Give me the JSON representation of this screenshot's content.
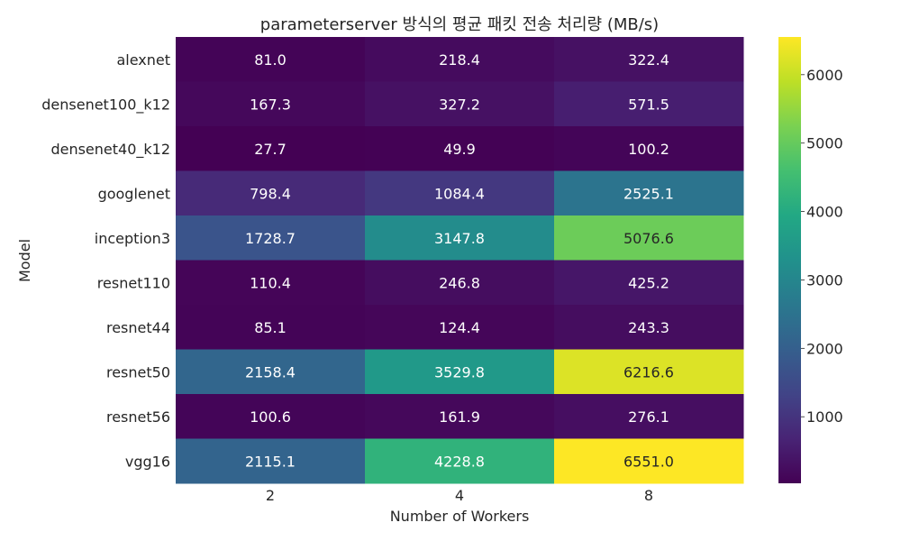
{
  "chart_data": {
    "type": "heatmap",
    "title": "parameterserver 방식의 평균 패킷 전송 처리량 (MB/s)",
    "xlabel": "Number of Workers",
    "ylabel": "Model",
    "x_categories": [
      "2",
      "4",
      "8"
    ],
    "y_categories": [
      "alexnet",
      "densenet100_k12",
      "densenet40_k12",
      "googlenet",
      "inception3",
      "resnet110",
      "resnet44",
      "resnet50",
      "resnet56",
      "vgg16"
    ],
    "values": [
      [
        81.0,
        218.4,
        322.4
      ],
      [
        167.3,
        327.2,
        571.5
      ],
      [
        27.7,
        49.9,
        100.2
      ],
      [
        798.4,
        1084.4,
        2525.1
      ],
      [
        1728.7,
        3147.8,
        5076.6
      ],
      [
        110.4,
        246.8,
        425.2
      ],
      [
        85.1,
        124.4,
        243.3
      ],
      [
        2158.4,
        3529.8,
        6216.6
      ],
      [
        100.6,
        161.9,
        276.1
      ],
      [
        2115.1,
        4228.8,
        6551.0
      ]
    ],
    "value_format": "0.0",
    "colormap": "viridis",
    "color_range": [
      27.7,
      6551.0
    ],
    "colorbar_ticks": [
      1000,
      2000,
      3000,
      4000,
      5000,
      6000
    ],
    "grid": false
  }
}
